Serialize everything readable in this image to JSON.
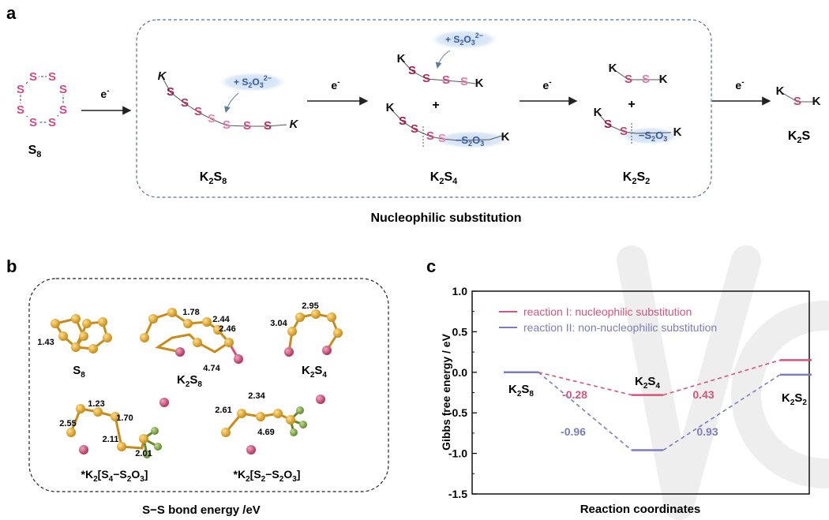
{
  "panel_a": {
    "letter": "a",
    "electron": "e",
    "electron_sup": "-",
    "atom_S": "S",
    "atom_K": "K",
    "plus": "+",
    "thiosulfate_prefix": "+ S",
    "thiosulfate_sub2": "2",
    "thiosulfate_O": "O",
    "thiosulfate_sub3": "3",
    "thiosulfate_charge": "2−",
    "bound_S2O3": {
      "s": "S",
      "sub2": "2",
      "o": "O",
      "sub3": "3",
      "dash": "−"
    },
    "species": {
      "S8": {
        "a": "S",
        "b": "8"
      },
      "K2S8": {
        "a": "K",
        "b": "2",
        "c": "S",
        "d": "8"
      },
      "K2S4": {
        "a": "K",
        "b": "2",
        "c": "S",
        "d": "4"
      },
      "K2S2": {
        "a": "K",
        "b": "2",
        "c": "S",
        "d": "2"
      },
      "K2S": {
        "a": "K",
        "b": "2",
        "c": "S"
      }
    },
    "box_caption": "Nucleophilic substitution"
  },
  "panel_b": {
    "letter": "b",
    "caption": "S−S bond energy /eV",
    "labels": {
      "S8": {
        "a": "S",
        "b": "8"
      },
      "K2S8": {
        "a": "K",
        "b": "2",
        "c": "S",
        "d": "8"
      },
      "K2S4": {
        "a": "K",
        "b": "2",
        "c": "S",
        "d": "4"
      },
      "K2S4S2O3": {
        "pre": "*K",
        "s1": "2",
        "mid": "[S",
        "s2": "4",
        "dash": "−S",
        "s3": "2",
        "o": "O",
        "s4": "3",
        "end": "]"
      },
      "K2S2S2O3": {
        "pre": "*K",
        "s1": "2",
        "mid": "[S",
        "s2": "2",
        "dash": "−S",
        "s3": "2",
        "o": "O",
        "s4": "3",
        "end": "]"
      }
    },
    "energies": {
      "S8": [
        "1.43"
      ],
      "K2S8": [
        "1.78",
        "2.44",
        "2.46",
        "4.74"
      ],
      "K2S4": [
        "2.95",
        "3.04"
      ],
      "K2S4S2O3": [
        "1.23",
        "1.70",
        "2.55",
        "2.11",
        "2.01"
      ],
      "K2S2S2O3": [
        "2.34",
        "2.61",
        "4.69"
      ]
    }
  },
  "panel_c": {
    "letter": "c"
  },
  "chart_data": {
    "type": "line",
    "ylabel": "Gibbs free energy / eV",
    "xlabel": "Reaction coordinates",
    "ylim": [
      -1.5,
      1.0
    ],
    "yticks": [
      "1.0",
      "0.5",
      "0.0",
      "-0.5",
      "-1.0",
      "-1.5"
    ],
    "grid": false,
    "legend_position": "top-left",
    "states": [
      {
        "a": "K",
        "b": "2",
        "c": "S",
        "d": "8"
      },
      {
        "a": "K",
        "b": "2",
        "c": "S",
        "d": "4"
      },
      {
        "a": "K",
        "b": "2",
        "c": "S",
        "d": "2"
      }
    ],
    "series": [
      {
        "name": "reaction I: nucleophilic substitution",
        "color": "#d5557a",
        "values": [
          0.0,
          -0.28,
          0.15
        ],
        "step_labels": [
          "-0.28",
          "0.43"
        ]
      },
      {
        "name": "reaction II: non-nucleophilic substitution",
        "color": "#7c7cc0",
        "values": [
          0.0,
          -0.96,
          -0.03
        ],
        "step_labels": [
          "-0.96",
          "0.93"
        ]
      }
    ]
  }
}
